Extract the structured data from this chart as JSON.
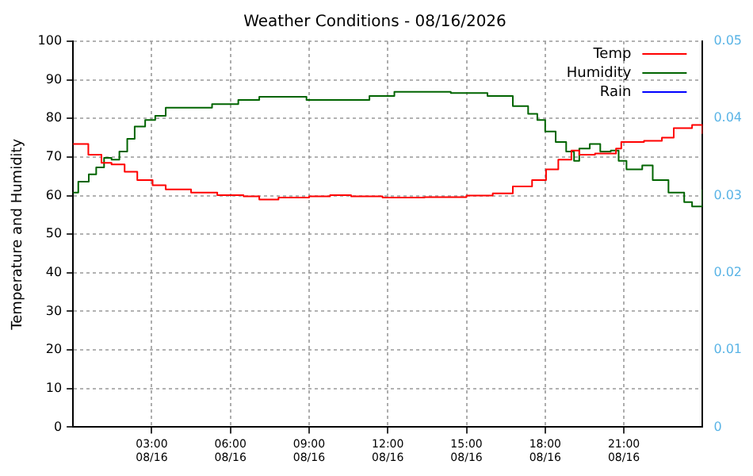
{
  "chart_data": {
    "type": "step",
    "title": "Weather Conditions - 08/16/2026",
    "ylabel": "Temperature and Humidity",
    "xlim": [
      "2026-08-16T00:00",
      "2026-08-17T00:00"
    ],
    "xticks": [
      {
        "value": "2026-08-16T03:00",
        "label": "03:00\n08/16"
      },
      {
        "value": "2026-08-16T06:00",
        "label": "06:00\n08/16"
      },
      {
        "value": "2026-08-16T09:00",
        "label": "09:00\n08/16"
      },
      {
        "value": "2026-08-16T12:00",
        "label": "12:00\n08/16"
      },
      {
        "value": "2026-08-16T15:00",
        "label": "15:00\n08/16"
      },
      {
        "value": "2026-08-16T18:00",
        "label": "18:00\n08/16"
      },
      {
        "value": "2026-08-16T21:00",
        "label": "21:00\n08/16"
      }
    ],
    "ylim": [
      0,
      100
    ],
    "yticks": [
      0,
      10,
      20,
      30,
      40,
      50,
      60,
      70,
      80,
      90,
      100
    ],
    "y2lim": [
      0,
      0.05
    ],
    "y2ticks": [
      0,
      0.01,
      0.02,
      0.03,
      0.04,
      0.05
    ],
    "grid": true,
    "legend": "top right",
    "marker": "none",
    "line_style": "solid",
    "series": [
      {
        "name": "Temp",
        "color": "#ff0000",
        "x": [
          "2026-08-16T00:00",
          "2026-08-16T00:35",
          "2026-08-16T01:05",
          "2026-08-16T01:28",
          "2026-08-16T01:58",
          "2026-08-16T02:27",
          "2026-08-16T03:02",
          "2026-08-16T03:32",
          "2026-08-16T04:30",
          "2026-08-16T05:30",
          "2026-08-16T06:30",
          "2026-08-16T07:06",
          "2026-08-16T07:50",
          "2026-08-16T09:00",
          "2026-08-16T09:48",
          "2026-08-16T10:36",
          "2026-08-16T11:48",
          "2026-08-16T13:24",
          "2026-08-16T15:00",
          "2026-08-16T16:00",
          "2026-08-16T16:46",
          "2026-08-16T17:30",
          "2026-08-16T18:02",
          "2026-08-16T18:30",
          "2026-08-16T19:00",
          "2026-08-16T19:18",
          "2026-08-16T19:54",
          "2026-08-16T20:42",
          "2026-08-16T20:54",
          "2026-08-16T21:46",
          "2026-08-16T22:27",
          "2026-08-16T22:54",
          "2026-08-16T23:36",
          "2026-08-17T00:00"
        ],
        "values": [
          73.4,
          70.6,
          68.5,
          68.1,
          66.2,
          64,
          62.7,
          61.6,
          60.8,
          60.1,
          59.8,
          59,
          59.5,
          59.8,
          60.1,
          59.8,
          59.5,
          59.6,
          60,
          60.6,
          62.4,
          64,
          66.8,
          69.3,
          71.7,
          70.6,
          70.9,
          72.2,
          73.9,
          74.2,
          75,
          77.5,
          78.3,
          76
        ]
      },
      {
        "name": "Humidity",
        "color": "#006400",
        "x": [
          "2026-08-16T00:00",
          "2026-08-16T00:12",
          "2026-08-16T00:36",
          "2026-08-16T00:53",
          "2026-08-16T01:11",
          "2026-08-16T01:28",
          "2026-08-16T01:46",
          "2026-08-16T02:04",
          "2026-08-16T02:21",
          "2026-08-16T02:45",
          "2026-08-16T03:08",
          "2026-08-16T03:32",
          "2026-08-16T05:18",
          "2026-08-16T06:18",
          "2026-08-16T07:06",
          "2026-08-16T08:54",
          "2026-08-16T11:18",
          "2026-08-16T12:15",
          "2026-08-16T14:24",
          "2026-08-16T15:48",
          "2026-08-16T16:46",
          "2026-08-16T17:21",
          "2026-08-16T17:42",
          "2026-08-16T18:00",
          "2026-08-16T18:24",
          "2026-08-16T18:48",
          "2026-08-16T19:06",
          "2026-08-16T19:18",
          "2026-08-16T19:42",
          "2026-08-16T20:06",
          "2026-08-16T20:30",
          "2026-08-16T20:48",
          "2026-08-16T21:06",
          "2026-08-16T21:42",
          "2026-08-16T22:06",
          "2026-08-16T22:42",
          "2026-08-16T23:18",
          "2026-08-16T23:36",
          "2026-08-17T00:00"
        ],
        "values": [
          60.8,
          63.6,
          65.5,
          67.3,
          69.8,
          69.3,
          71.4,
          74.7,
          77.9,
          79.6,
          80.7,
          82.8,
          83.7,
          84.8,
          85.6,
          84.8,
          85.8,
          86.9,
          86.6,
          85.8,
          83.2,
          81.2,
          79.6,
          76.6,
          73.9,
          71.4,
          69,
          72.2,
          73.4,
          71.4,
          71.7,
          69,
          66.8,
          67.8,
          64,
          60.8,
          58.3,
          57.2,
          61.6
        ]
      },
      {
        "name": "Rain",
        "color": "#0000ff"
      }
    ]
  }
}
